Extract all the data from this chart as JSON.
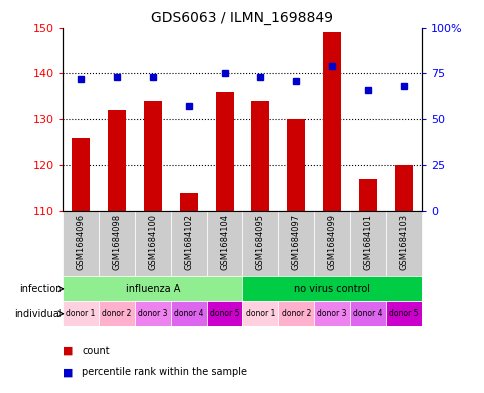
{
  "title": "GDS6063 / ILMN_1698849",
  "samples": [
    "GSM1684096",
    "GSM1684098",
    "GSM1684100",
    "GSM1684102",
    "GSM1684104",
    "GSM1684095",
    "GSM1684097",
    "GSM1684099",
    "GSM1684101",
    "GSM1684103"
  ],
  "counts": [
    126,
    132,
    134,
    114,
    136,
    134,
    130,
    149,
    117,
    120
  ],
  "percentiles": [
    72,
    73,
    73,
    57,
    75,
    73,
    71,
    79,
    66,
    68
  ],
  "ylim_left": [
    110,
    150
  ],
  "ylim_right": [
    0,
    100
  ],
  "yticks_left": [
    110,
    120,
    130,
    140,
    150
  ],
  "yticks_right": [
    0,
    25,
    50,
    75,
    100
  ],
  "infection_groups": [
    {
      "label": "influenza A",
      "start": 0,
      "end": 5,
      "color": "#90EE90"
    },
    {
      "label": "no virus control",
      "start": 5,
      "end": 10,
      "color": "#00CC44"
    }
  ],
  "donors": [
    "donor 1",
    "donor 2",
    "donor 3",
    "donor 4",
    "donor 5",
    "donor 1",
    "donor 2",
    "donor 3",
    "donor 4",
    "donor 5"
  ],
  "donor_colors": [
    "#FFB6C1",
    "#FFB6C1",
    "#FFB6C1",
    "#EE82EE",
    "#FF00FF",
    "#FFB6C1",
    "#FFB6C1",
    "#EE82EE",
    "#EE82EE",
    "#FF00FF"
  ],
  "bar_color": "#CC0000",
  "dot_color": "#0000CC",
  "bar_bottom": 110,
  "grid_color": "#000000",
  "background_color": "#FFFFFF",
  "sample_bg_color": "#CCCCCC"
}
